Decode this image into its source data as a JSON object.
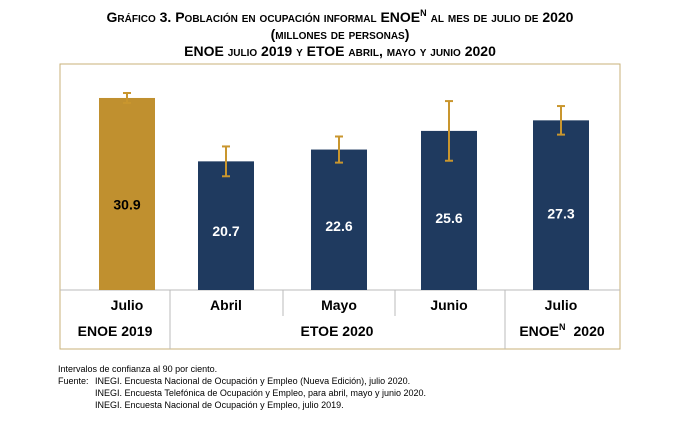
{
  "chart_data": {
    "type": "bar",
    "title": {
      "main": "Gráfico 3. Población en ocupación informal ENOE",
      "superscript": "N",
      "tail": "al mes de julio de 2020"
    },
    "subtitle": "(millones de personas)",
    "subtitle2": "ENOE julio 2019 y ETOE abril, mayo y junio 2020",
    "categories": [
      "Julio",
      "Abril",
      "Mayo",
      "Junio",
      "Julio"
    ],
    "values": [
      30.9,
      20.7,
      22.6,
      25.6,
      27.3
    ],
    "errors": [
      0.8,
      2.4,
      2.1,
      4.8,
      2.3
    ],
    "colors": [
      "#c0902f",
      "#1f3a5f",
      "#1f3a5f",
      "#1f3a5f",
      "#1f3a5f"
    ],
    "error_color": "#c9962e",
    "groups": [
      {
        "text": "ENOE 2019"
      },
      {
        "text": "ETOE 2020"
      },
      {
        "text": "ENOE",
        "superscript": "N",
        "suffix": "2020"
      }
    ],
    "notes": {
      "confidence": "Intervalos de confianza al 90 por ciento.",
      "source_label": "Fuente:",
      "sources": [
        "INEGI. Encuesta Nacional de Ocupación y Empleo (Nueva Edición), julio 2020.",
        "INEGI. Encuesta Telefónica de Ocupación y Empleo, para abril, mayo y junio 2020.",
        "INEGI. Encuesta Nacional de Ocupación y Empleo, julio 2019."
      ]
    }
  }
}
